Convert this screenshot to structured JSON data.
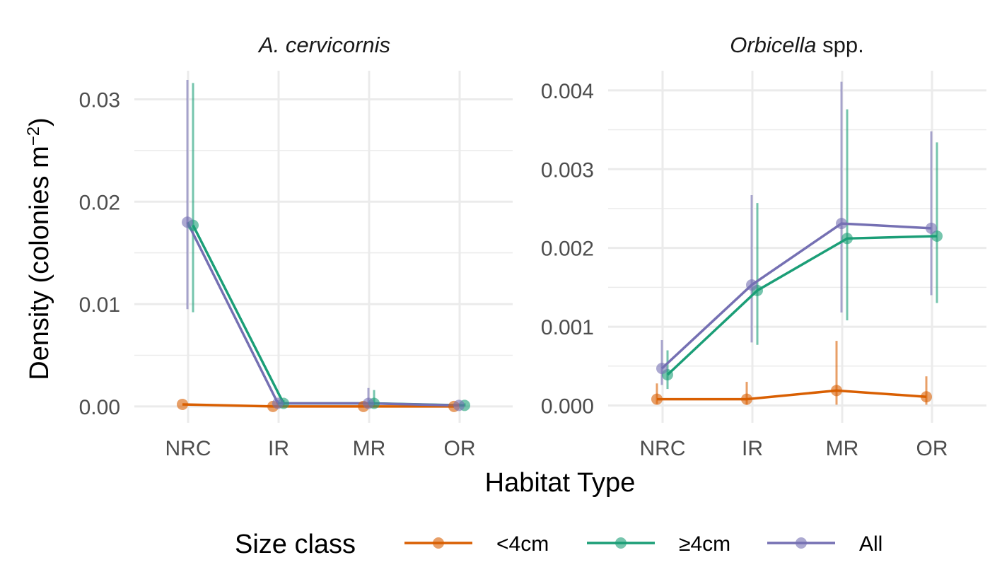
{
  "colors": {
    "lt4": "#d95f02",
    "ge4": "#1b9e77",
    "all": "#7570b3",
    "grid": "#ebebeb",
    "tick_text": "#4d4d4d"
  },
  "chart_data": {
    "type": "line",
    "xlabel": "Habitat Type",
    "ylabel": "Density (colonies m",
    "ylabel_sup": "−2",
    "ylabel_close": ")",
    "categories": [
      "NRC",
      "IR",
      "MR",
      "OR"
    ],
    "legend": {
      "title": "Size class",
      "position": "bottom",
      "items": [
        {
          "key": "lt4",
          "label": "<4cm"
        },
        {
          "key": "ge4",
          "label": "≥4cm"
        },
        {
          "key": "all",
          "label": "All"
        }
      ]
    },
    "panels": [
      {
        "title": "A. cervicornis",
        "title_italic": "A. cervicornis",
        "title_rest": "",
        "ylim": [
          -0.0016,
          0.0328
        ],
        "yticks": [
          0.0,
          0.01,
          0.02,
          0.03
        ],
        "ytick_labels": [
          "0.00",
          "0.01",
          "0.02",
          "0.03"
        ],
        "yminor": [
          0.005,
          0.015,
          0.025
        ],
        "series": [
          {
            "key": "lt4",
            "name": "<4cm",
            "values": [
              0.0002,
              0.0,
              0.0,
              0.0
            ],
            "err_low": [
              0.0002,
              0.0,
              0.0,
              0.0
            ],
            "err_high": [
              0.0002,
              0.0,
              0.0,
              0.0
            ]
          },
          {
            "key": "ge4",
            "name": "≥4cm",
            "values": [
              0.0177,
              0.0003,
              0.0003,
              0.0001
            ],
            "err_low": [
              0.0092,
              0.0001,
              0.0001,
              0.0
            ],
            "err_high": [
              0.0316,
              0.0006,
              0.0016,
              0.0003
            ]
          },
          {
            "key": "all",
            "name": "All",
            "values": [
              0.018,
              0.0003,
              0.0003,
              0.0001
            ],
            "err_low": [
              0.0095,
              0.0001,
              0.0001,
              0.0
            ],
            "err_high": [
              0.0319,
              0.0006,
              0.0018,
              0.0003
            ]
          }
        ]
      },
      {
        "title": "Orbicella spp.",
        "title_italic": "Orbicella",
        "title_rest": " spp.",
        "ylim": [
          -0.00022,
          0.00425
        ],
        "yticks": [
          0.0,
          0.001,
          0.002,
          0.003,
          0.004
        ],
        "ytick_labels": [
          "0.000",
          "0.001",
          "0.002",
          "0.003",
          "0.004"
        ],
        "yminor": [
          0.0005,
          0.0015,
          0.0025,
          0.0035
        ],
        "series": [
          {
            "key": "lt4",
            "name": "<4cm",
            "values": [
              8e-05,
              8e-05,
              0.00019,
              0.00011
            ],
            "err_low": [
              2e-05,
              1e-05,
              1e-05,
              1e-05
            ],
            "err_high": [
              0.00028,
              0.0003,
              0.00082,
              0.00037
            ]
          },
          {
            "key": "ge4",
            "name": "≥4cm",
            "values": [
              0.00039,
              0.00146,
              0.00212,
              0.00215
            ],
            "err_low": [
              0.00021,
              0.00077,
              0.00108,
              0.0013
            ],
            "err_high": [
              0.0007,
              0.00257,
              0.00376,
              0.00334
            ]
          },
          {
            "key": "all",
            "name": "All",
            "values": [
              0.00047,
              0.00153,
              0.00231,
              0.00225
            ],
            "err_low": [
              0.00026,
              0.0008,
              0.00118,
              0.0014
            ],
            "err_high": [
              0.00083,
              0.00267,
              0.00411,
              0.00348
            ]
          }
        ]
      }
    ]
  }
}
